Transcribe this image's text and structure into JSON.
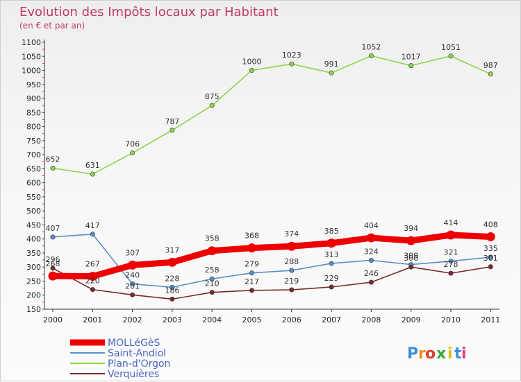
{
  "chart_data": {
    "type": "line",
    "title": "Evolution des Impôts locaux par Habitant",
    "subtitle": "(en € et par an)",
    "xlabel": "",
    "ylabel": "",
    "categories": [
      "2000",
      "2001",
      "2002",
      "2003",
      "2004",
      "2005",
      "2006",
      "2007",
      "2008",
      "2009",
      "2010",
      "2011"
    ],
    "ylim": [
      150,
      1100
    ],
    "yticks": [
      150,
      200,
      250,
      300,
      350,
      400,
      450,
      500,
      550,
      600,
      650,
      700,
      750,
      800,
      850,
      900,
      950,
      1000,
      1050,
      1100
    ],
    "grid": false,
    "legend_position": "bottom-left",
    "series": [
      {
        "name": "MOLLéGèS",
        "color": "#ee0000",
        "emphasis": true,
        "values": [
          268,
          267,
          307,
          317,
          358,
          368,
          374,
          385,
          404,
          394,
          414,
          408
        ],
        "labels": [
          "268",
          "267",
          "307",
          "317",
          "358",
          "368",
          "374",
          "385",
          "404",
          "394",
          "414",
          "408"
        ]
      },
      {
        "name": "Saint-Andiol",
        "color": "#5a8fc7",
        "emphasis": false,
        "values": [
          407,
          417,
          240,
          228,
          258,
          279,
          288,
          313,
          324,
          309,
          321,
          335
        ],
        "labels": [
          "407",
          "417",
          "240",
          "228",
          "258",
          "279",
          "288",
          "313",
          "324",
          "309",
          "321",
          "335"
        ]
      },
      {
        "name": "Plan-d'Orgon",
        "color": "#8fd44e",
        "emphasis": false,
        "values": [
          652,
          631,
          706,
          787,
          875,
          1000,
          1023,
          991,
          1052,
          1017,
          1051,
          987
        ],
        "labels": [
          "652",
          "631",
          "706",
          "787",
          "875",
          "1000",
          "1023",
          "991",
          "1052",
          "1017",
          "1051",
          "987"
        ]
      },
      {
        "name": "Verquières",
        "color": "#7a2a2a",
        "emphasis": false,
        "values": [
          296,
          220,
          201,
          186,
          210,
          217,
          219,
          229,
          246,
          300,
          278,
          301
        ],
        "labels": [
          "296",
          "220",
          "201",
          "186",
          "210",
          "217",
          "219",
          "229",
          "246",
          "300",
          "278",
          "301"
        ]
      }
    ]
  },
  "brand": {
    "letters": [
      "P",
      "r",
      "o",
      "x",
      "i",
      "t",
      "i"
    ],
    "colors": [
      "#3a8fd8",
      "#f08a1a",
      "#e03a2a",
      "#3aa83a",
      "#d8c21a",
      "#3a8fd8",
      "#e03a8a"
    ]
  }
}
